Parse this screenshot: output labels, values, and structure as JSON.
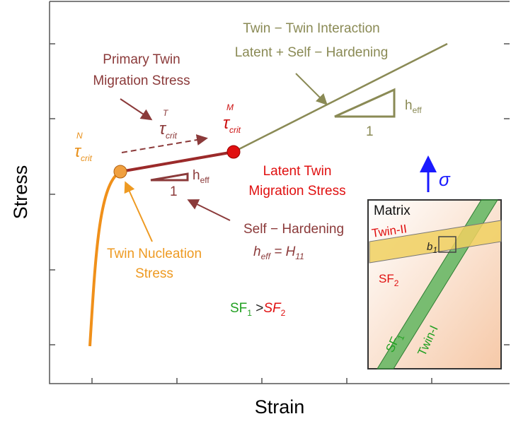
{
  "axes": {
    "y_label": "Stress",
    "x_label": "Strain"
  },
  "interaction": {
    "line1": "Twin − Twin Interaction",
    "line2": "Latent + Self − Hardening",
    "h": "h",
    "h_sub": "eff",
    "one": "1"
  },
  "primary": {
    "line1": "Primary Twin",
    "line2": "Migration Stress"
  },
  "tau_n": {
    "symbol": "τ",
    "sub": "crit",
    "sup": "N"
  },
  "tau_t": {
    "symbol": "τ",
    "sub": "crit",
    "sup": "T"
  },
  "tau_m": {
    "symbol": "τ",
    "sub": "crit",
    "sup": "M"
  },
  "latent": {
    "line1": "Latent Twin",
    "line2": "Migration Stress"
  },
  "self_triangle": {
    "h": "h",
    "h_sub": "eff",
    "one": "1"
  },
  "self": {
    "line1": "Self − Hardening",
    "h": "h",
    "h_sub": "eff",
    "eq": " = H",
    "eq_sub": "11"
  },
  "nucleation": {
    "line1": "Twin Nucleation",
    "line2": "Stress"
  },
  "sf": {
    "sf1": "SF",
    "sf1_sub": "1",
    "gt": " >",
    "sf2": "SF",
    "sf2_sub": "2"
  },
  "sigma": "σ",
  "inset": {
    "matrix": "Matrix",
    "twin2": "Twin-II",
    "b": "b",
    "b_sub": "1",
    "sf2": "SF",
    "sf2_sub": "2",
    "sf1": "SF",
    "sf1_sub": "1",
    "twin1": "Twin-I"
  }
}
